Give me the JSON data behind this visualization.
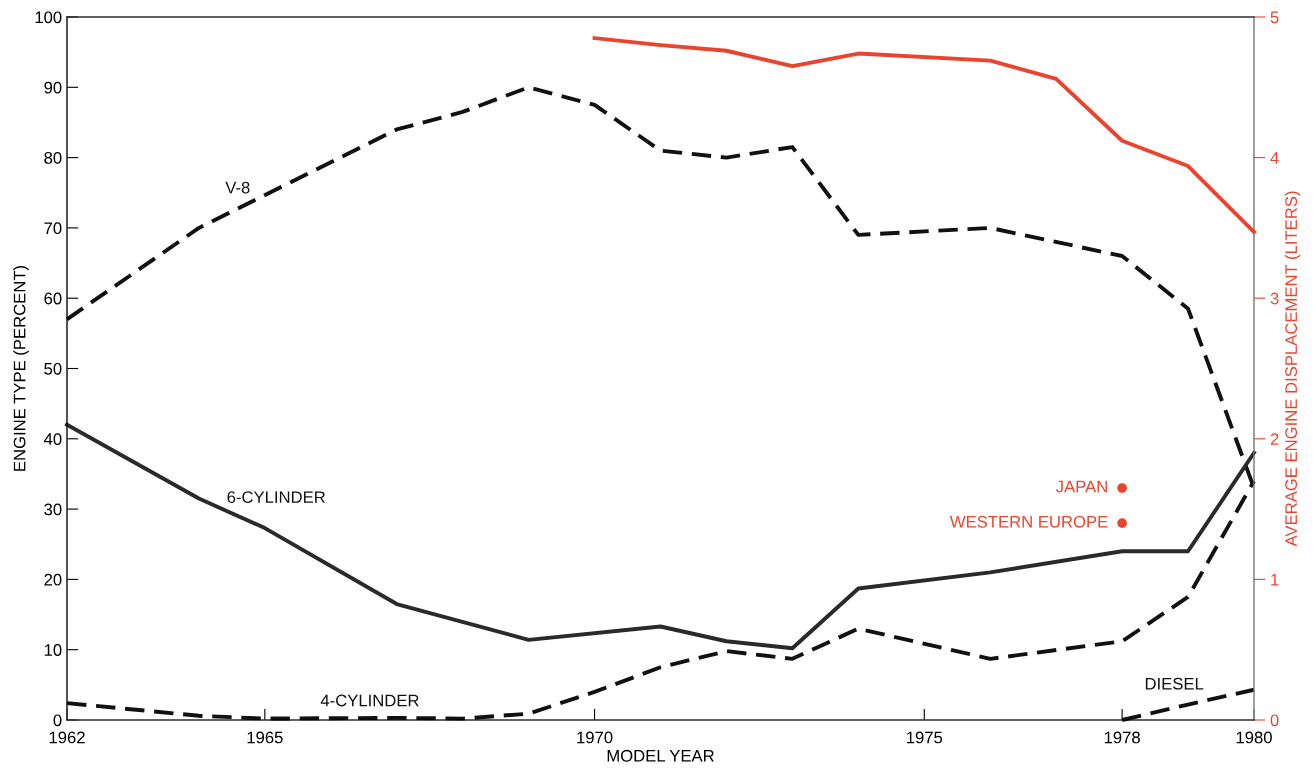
{
  "chart_data": {
    "type": "line",
    "xlabel": "MODEL YEAR",
    "ylabel": "ENGINE TYPE (PERCENT)",
    "y2label": "AVERAGE ENGINE DISPLACEMENT (LITERS)",
    "xlim": [
      1962,
      1980
    ],
    "xticks": [
      1962,
      1965,
      1970,
      1975,
      1978,
      1980
    ],
    "ylim": [
      0,
      100
    ],
    "yticks": [
      0,
      10,
      20,
      30,
      40,
      50,
      60,
      70,
      80,
      90,
      100
    ],
    "y2lim": [
      0,
      5
    ],
    "y2ticks": [
      0,
      1,
      2,
      3,
      4,
      5
    ],
    "grid": false,
    "legend": false,
    "series": [
      {
        "name": "V-8",
        "color": "#111111",
        "line_style": "dashed",
        "x": [
          1962,
          1964,
          1967,
          1968,
          1969,
          1970,
          1971,
          1972,
          1973,
          1974,
          1976,
          1978,
          1979,
          1980
        ],
        "values": [
          57,
          70,
          84,
          86.5,
          90,
          87.5,
          81,
          80,
          81.5,
          69,
          70,
          66,
          58.5,
          33
        ]
      },
      {
        "name": "6-CYLINDER",
        "color": "#2a2a2a",
        "line_style": "solid",
        "x": [
          1962,
          1964,
          1965,
          1967,
          1969,
          1971,
          1972,
          1973,
          1974,
          1976,
          1978,
          1979,
          1980
        ],
        "values": [
          42,
          31.5,
          27.3,
          16.5,
          11.4,
          13.3,
          11.2,
          10.2,
          18.7,
          21,
          24,
          24,
          38
        ]
      },
      {
        "name": "4-CYLINDER",
        "color": "#111111",
        "line_style": "dashed",
        "x": [
          1962,
          1964,
          1965,
          1967,
          1968,
          1969,
          1970,
          1971,
          1972,
          1973,
          1974,
          1976,
          1978,
          1979,
          1980
        ],
        "values": [
          2.4,
          0.6,
          0.2,
          0.3,
          0.2,
          0.9,
          4,
          7.5,
          9.8,
          8.7,
          13,
          8.7,
          11.2,
          17.5,
          34
        ]
      },
      {
        "name": "DIESEL",
        "color": "#111111",
        "line_style": "dashed",
        "x": [
          1978,
          1979,
          1980
        ],
        "values": [
          0,
          2.2,
          4.3
        ]
      },
      {
        "color": "#e8442e",
        "axis": "y2",
        "line_style": "solid",
        "x": [
          1970,
          1971,
          1972,
          1973,
          1974,
          1976,
          1977,
          1978,
          1979,
          1980
        ],
        "values": [
          4.85,
          4.8,
          4.76,
          4.65,
          4.74,
          4.69,
          4.56,
          4.12,
          3.94,
          3.47
        ]
      },
      {
        "name": "JAPAN",
        "type": "scatter",
        "marker": "circle",
        "color": "#e8442e",
        "axis": "y2",
        "x": [
          1978
        ],
        "values": [
          1.65
        ]
      },
      {
        "name": "WESTERN EUROPE",
        "type": "scatter",
        "marker": "circle",
        "color": "#e8442e",
        "axis": "y2",
        "x": [
          1978
        ],
        "values": [
          1.4
        ]
      }
    ]
  }
}
